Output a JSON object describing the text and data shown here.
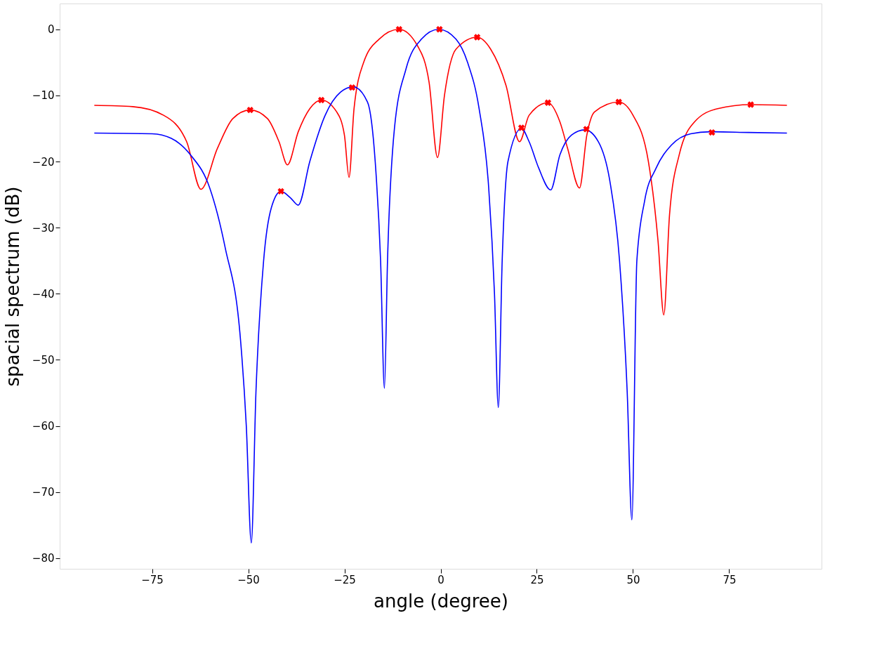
{
  "chart_data": {
    "type": "line",
    "xlabel": "angle (degree)",
    "ylabel": "spacial spectrum (dB)",
    "xlim": [
      -99,
      99
    ],
    "ylim": [
      -81.6,
      3.9
    ],
    "xticks": [
      -75,
      -50,
      -25,
      0,
      25,
      50,
      75
    ],
    "yticks": [
      0,
      -10,
      -20,
      -30,
      -40,
      -50,
      -60,
      -70,
      -80
    ],
    "grid": false,
    "line_style": "solid",
    "series": [
      {
        "type": "line",
        "color": "#ff0000",
        "marker": "none",
        "x": [
          -90,
          -80,
          -72,
          -66,
          -62.3,
          -58,
          -54,
          -49.5,
          -45,
          -42,
          -39.8,
          -37,
          -34,
          -31,
          -27,
          -25,
          -23.8,
          -22.5,
          -20,
          -16,
          -10.8,
          -6,
          -3,
          -0.8,
          1,
          4,
          9.5,
          13,
          17,
          20.5,
          23,
          27.9,
          31,
          33,
          36.1,
          38,
          40,
          46.3,
          50,
          54,
          56.5,
          58,
          59.5,
          62,
          66,
          72,
          80.6,
          90
        ],
        "values": [
          -11.5,
          -11.7,
          -13,
          -17,
          -24.2,
          -18,
          -13.5,
          -12.2,
          -13.5,
          -17,
          -20.5,
          -15.5,
          -12,
          -10.7,
          -12.5,
          -16,
          -22.4,
          -12,
          -5,
          -1.5,
          0,
          -2.5,
          -8,
          -19.4,
          -10,
          -3,
          -1.2,
          -3,
          -8.5,
          -17,
          -13,
          -11.1,
          -14,
          -18,
          -24,
          -16,
          -12.5,
          -11,
          -13,
          -20,
          -32,
          -43.2,
          -28,
          -19,
          -14,
          -12,
          -11.4,
          -11.5
        ]
      },
      {
        "type": "line",
        "color": "#0000ff",
        "marker": "none",
        "x": [
          -90,
          -75,
          -70,
          -65,
          -60,
          -56,
          -52,
          -50.5,
          -49.2,
          -48,
          -46,
          -44,
          -41.5,
          -39,
          -37,
          -34,
          -30,
          -26,
          -22.7,
          -19,
          -17,
          -15.6,
          -14.6,
          -13.8,
          -12,
          -9,
          -5,
          -0.5,
          4,
          7,
          10,
          12.5,
          14,
          15,
          16,
          17.5,
          21,
          23,
          25.5,
          28.6,
          31,
          34,
          37.5,
          41,
          44,
          46.5,
          48.5,
          49.7,
          51,
          53,
          56,
          60,
          65,
          70,
          80,
          90
        ],
        "values": [
          -15.7,
          -15.8,
          -16.5,
          -19,
          -24,
          -33,
          -47,
          -60,
          -77.7,
          -55,
          -35,
          -27,
          -24.5,
          -25.5,
          -26.6,
          -20,
          -13,
          -9.5,
          -8.7,
          -11,
          -20,
          -35,
          -54.3,
          -35,
          -15,
          -6,
          -1.5,
          0,
          -1.5,
          -5,
          -12,
          -24,
          -40,
          -57.2,
          -35,
          -20,
          -15,
          -17,
          -21,
          -24.3,
          -19,
          -16,
          -15.2,
          -17,
          -23,
          -35,
          -55,
          -74.2,
          -35,
          -26,
          -21,
          -17.5,
          -15.8,
          -15.5,
          -15.6,
          -15.7
        ]
      },
      {
        "type": "scatter",
        "color": "#ff0000",
        "marker": "cross",
        "x": [
          -49.5,
          -41.5,
          -31,
          -23,
          -10.8,
          -0.3,
          9.5,
          21,
          27.9,
          37.9,
          46.3,
          70.5,
          80.6
        ],
        "values": [
          -12.2,
          -24.5,
          -10.7,
          -8.8,
          0,
          0,
          -1.2,
          -14.9,
          -11.1,
          -15.1,
          -11,
          -15.6,
          -11.4
        ]
      }
    ]
  }
}
